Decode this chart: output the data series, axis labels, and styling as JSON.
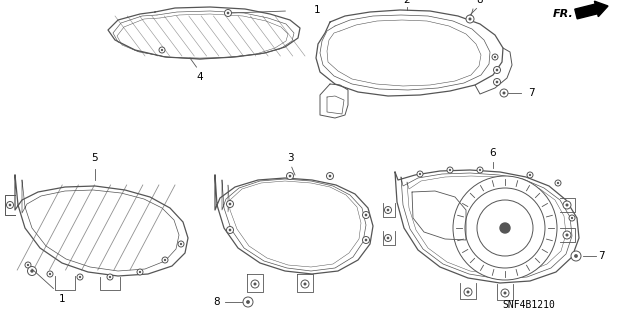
{
  "bg_color": "#ffffff",
  "line_color": "#555555",
  "part_code": "SNF4B1210",
  "figsize": [
    6.4,
    3.19
  ],
  "dpi": 100
}
